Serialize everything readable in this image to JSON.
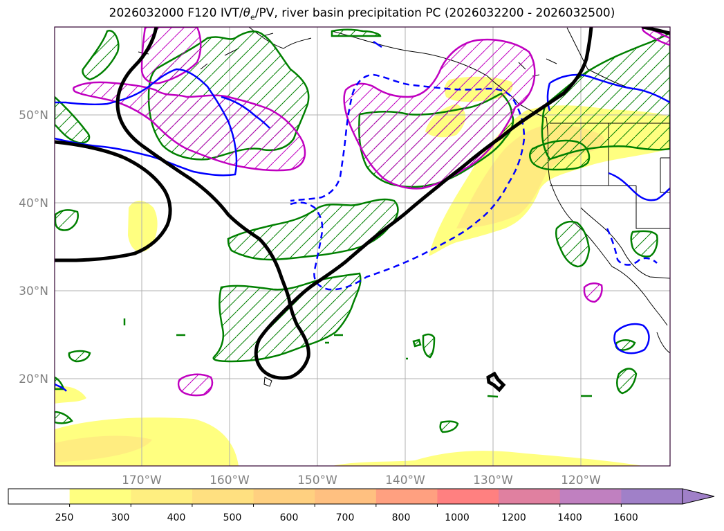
{
  "title": {
    "prefix": "2026032000 F120 IVT/",
    "theta": "θ",
    "theta_sub": "e",
    "suffix": "/PV, river basin precipitation PC (2026032200 - 2026032500)"
  },
  "map": {
    "lat_labels": [
      "50°N",
      "40°N",
      "30°N",
      "20°N"
    ],
    "lon_labels": [
      "170°W",
      "160°W",
      "150°W",
      "140°W",
      "130°W",
      "120°W"
    ],
    "colors": {
      "ivt_fill": "#ffff80",
      "ivt_fill_strong": "#ffe680",
      "theta_contour": "#008000",
      "pv_contour_high": "#c000c0",
      "pv_contour_low": "#0000ff",
      "jet_contour": "#000000"
    }
  },
  "colorbar": {
    "ticks": [
      "250",
      "300",
      "400",
      "500",
      "600",
      "700",
      "800",
      "1000",
      "1200",
      "1400",
      "1600"
    ],
    "colors": [
      "#ffffff",
      "#ffff80",
      "#ffef80",
      "#ffe080",
      "#ffd080",
      "#ffc080",
      "#ffa080",
      "#ff8080",
      "#e080a0",
      "#c080c0",
      "#a080c8"
    ]
  }
}
